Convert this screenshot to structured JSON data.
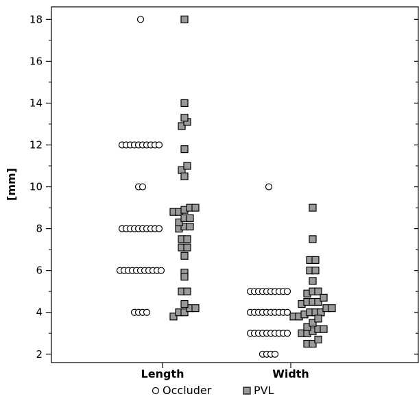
{
  "chart_data": {
    "type": "scatter",
    "ylabel": "[mm]",
    "ylim": [
      1.6,
      18.6
    ],
    "yticks": [
      2,
      4,
      6,
      8,
      10,
      12,
      14,
      16,
      18
    ],
    "categories": [
      "Length",
      "Width"
    ],
    "legend_position": "bottom",
    "series": [
      {
        "name": "Occluder",
        "marker": "open-circle",
        "color": "#ffffff",
        "stroke": "#000000",
        "values": [
          [
            4,
            4,
            4,
            4,
            6,
            6,
            6,
            6,
            6,
            6,
            6,
            6,
            6,
            6,
            6,
            8,
            8,
            8,
            8,
            8,
            8,
            8,
            8,
            8,
            8,
            10,
            10,
            12,
            12,
            12,
            12,
            12,
            12,
            12,
            12,
            12,
            12,
            18
          ],
          [
            2,
            2,
            2,
            2,
            3,
            3,
            3,
            3,
            3,
            3,
            3,
            3,
            3,
            3,
            4,
            4,
            4,
            4,
            4,
            4,
            4,
            4,
            4,
            4,
            5,
            5,
            5,
            5,
            5,
            5,
            5,
            5,
            5,
            5,
            10
          ]
        ]
      },
      {
        "name": "PVL",
        "marker": "filled-square",
        "color": "#9a9a9a",
        "stroke": "#000000",
        "values": [
          [
            3.8,
            4,
            4,
            4.2,
            4.2,
            4.4,
            5,
            5,
            5.7,
            5.9,
            6.7,
            7.1,
            7.1,
            7.5,
            7.5,
            8,
            8.1,
            8.1,
            8.3,
            8.5,
            8.5,
            8.8,
            8.8,
            8.9,
            9,
            9,
            10.5,
            10.8,
            11,
            11.8,
            12.9,
            13.1,
            13.3,
            14,
            18
          ],
          [
            2.5,
            2.5,
            2.7,
            3,
            3,
            3.1,
            3.2,
            3.2,
            3.3,
            3.5,
            3.7,
            3.8,
            3.8,
            3.9,
            4,
            4,
            4,
            4.2,
            4.2,
            4.4,
            4.5,
            4.5,
            4.5,
            4.7,
            4.9,
            5,
            5,
            5.5,
            6,
            6,
            6.5,
            6.5,
            7.5,
            9
          ]
        ]
      }
    ]
  }
}
